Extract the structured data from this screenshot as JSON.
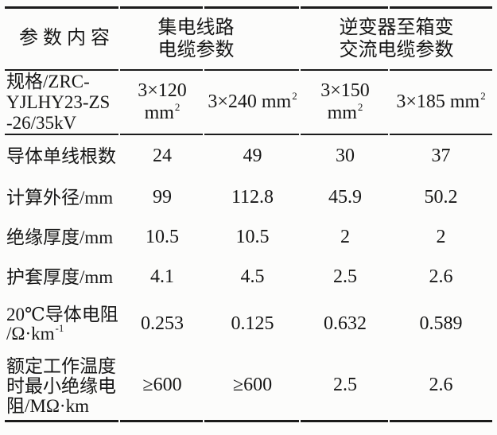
{
  "table_meta": {
    "description_visible": false
  },
  "header": {
    "param_label": "参数内容",
    "group1_line1": "集电线路",
    "group1_line2": "电缆参数",
    "group2_line1": "逆变器至箱变",
    "group2_line2": "交流电缆参数"
  },
  "spec_row": {
    "label_line1": "规格/ZRC-",
    "label_line2": "YJLHY23-ZS",
    "label_line3": "-26/35kV",
    "values": [
      {
        "base": "3×120 mm",
        "sup": "2"
      },
      {
        "base": "3×240 mm",
        "sup": "2"
      },
      {
        "base": "3×150 mm",
        "sup": "2"
      },
      {
        "base": "3×185 mm",
        "sup": "2"
      }
    ]
  },
  "rows": [
    {
      "label": "导体单线根数",
      "values": [
        "24",
        "49",
        "30",
        "37"
      ]
    },
    {
      "label": "计算外径/mm",
      "values": [
        "99",
        "112.8",
        "45.9",
        "50.2"
      ]
    },
    {
      "label": "绝缘厚度/mm",
      "values": [
        "10.5",
        "10.5",
        "2",
        "2"
      ]
    },
    {
      "label": "护套厚度/mm",
      "values": [
        "4.1",
        "4.5",
        "2.5",
        "2.6"
      ]
    },
    {
      "label_line1": "20℃导体电阻",
      "label_line2_base": "/Ω·km",
      "label_line2_sup": "-1",
      "values": [
        "0.253",
        "0.125",
        "0.632",
        "0.589"
      ]
    },
    {
      "label_line1": "额定工作温度",
      "label_line2": "时最小绝缘电",
      "label_line3": "阻/MΩ·km",
      "values": [
        "≥600",
        "≥600",
        "2.5",
        "2.6"
      ]
    }
  ],
  "colors": {
    "text": "#161616",
    "background": "#fcfcfb",
    "rule": "#1b1b1b"
  }
}
